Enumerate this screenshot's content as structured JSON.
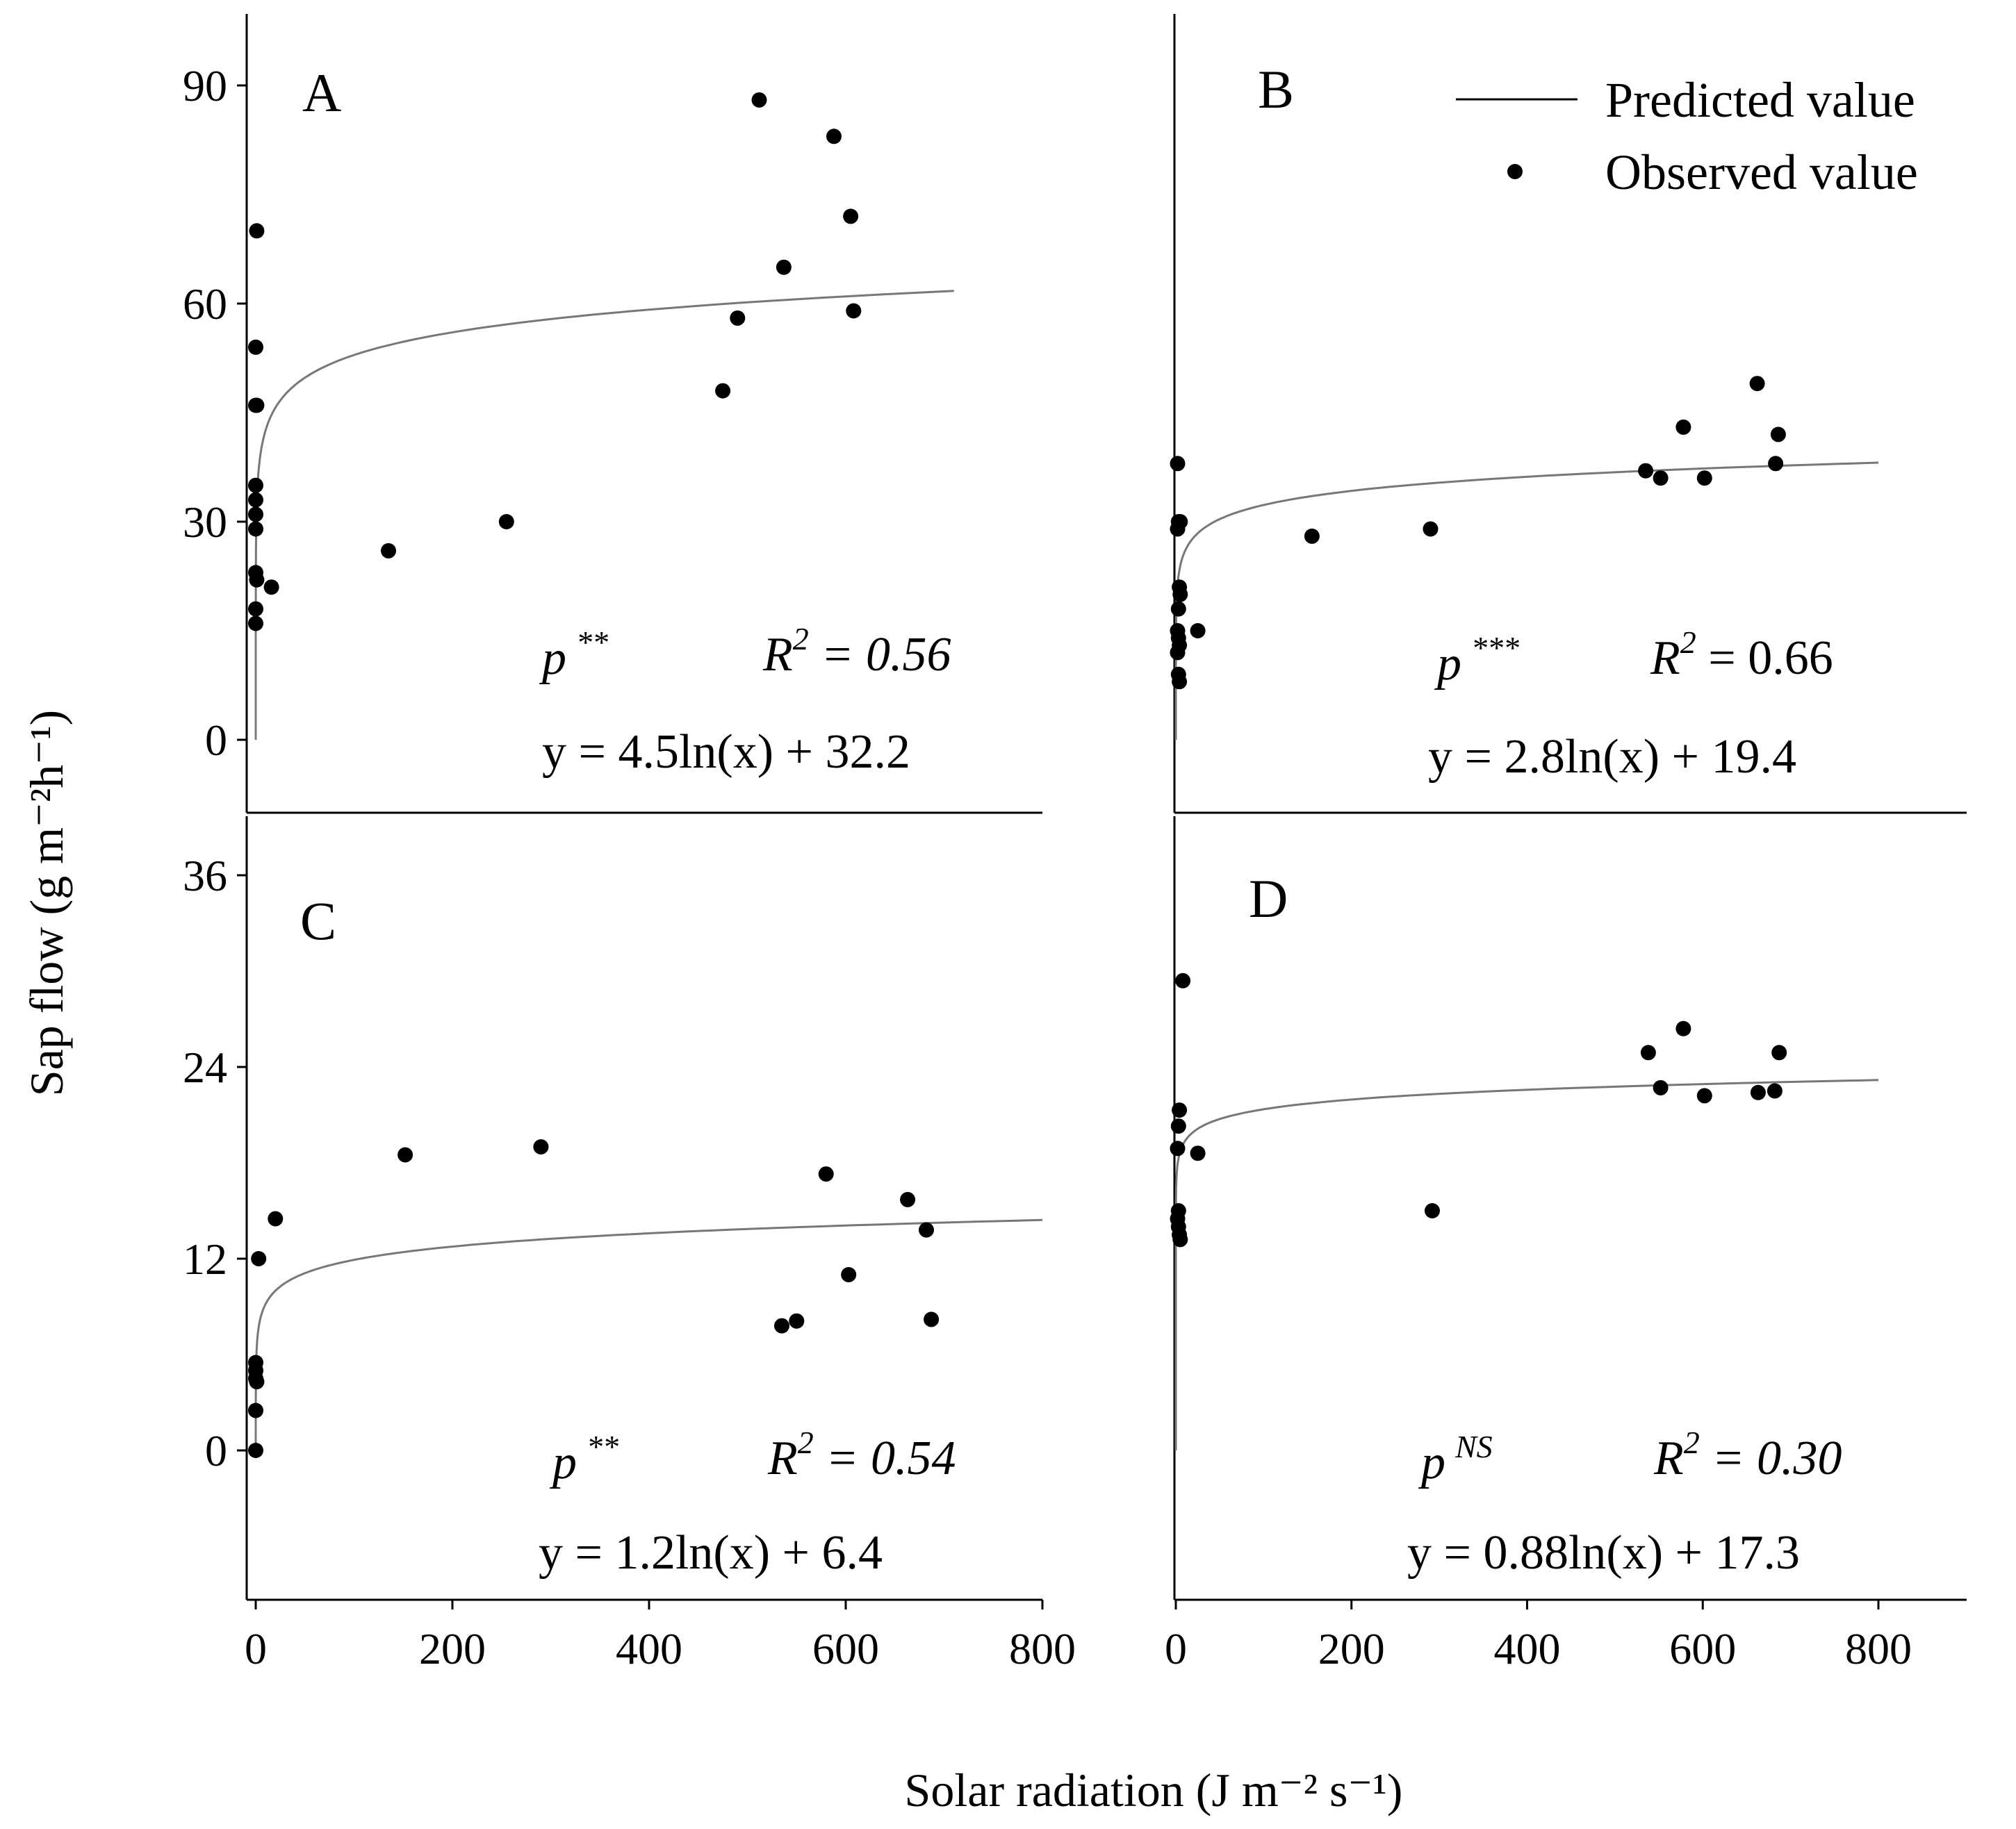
{
  "figure": {
    "ylabel": "Sap flow (g m⁻²h⁻¹)",
    "xlabel": "Solar radiation (J m⁻² s⁻¹)",
    "legend": {
      "predicted": "Predicted value",
      "observed": "Observed value"
    }
  },
  "chart_data": [
    {
      "type": "scatter",
      "panel": "A",
      "xlim": [
        -10,
        800
      ],
      "ylim": [
        -10,
        100
      ],
      "xticks": [
        0,
        200,
        400,
        600,
        800
      ],
      "xtick_labels": [
        "0",
        "200",
        "400",
        "600",
        "800"
      ],
      "yticks": [
        0,
        30,
        60,
        90
      ],
      "ytick_labels": [
        "0",
        "30",
        "60",
        "90"
      ],
      "fit": {
        "a": 4.5,
        "b": 32.2,
        "x_start": 0.001,
        "x_end": 710
      },
      "p_label": "p",
      "p_sup": "**",
      "r2_label": "R",
      "r2_text": " = 0.56",
      "equation": "y = 4.5ln(x) + 32.2",
      "points": [
        [
          1,
          70
        ],
        [
          0,
          54
        ],
        [
          0,
          46
        ],
        [
          1,
          46
        ],
        [
          0,
          35
        ],
        [
          0,
          33
        ],
        [
          0,
          31
        ],
        [
          0,
          29
        ],
        [
          0,
          23
        ],
        [
          1,
          22
        ],
        [
          0,
          18
        ],
        [
          0,
          16
        ],
        [
          16,
          21
        ],
        [
          135,
          26
        ],
        [
          255,
          30
        ],
        [
          475,
          48
        ],
        [
          490,
          58
        ],
        [
          512,
          88
        ],
        [
          537,
          65
        ],
        [
          588,
          83
        ],
        [
          605,
          72
        ],
        [
          608,
          59
        ]
      ]
    },
    {
      "type": "scatter",
      "panel": "B",
      "xlim": [
        -10,
        900
      ],
      "ylim": [
        -10,
        100
      ],
      "xticks": [
        0,
        200,
        400,
        600,
        800
      ],
      "xtick_labels": [
        "0",
        "200",
        "400",
        "600",
        "800"
      ],
      "yticks": [],
      "ytick_labels": [],
      "fit": {
        "a": 2.8,
        "b": 19.4,
        "x_start": 0.002,
        "x_end": 800
      },
      "p_label": "p",
      "p_sup": "***",
      "r2_label": "R",
      "r2_text": " = 0.66",
      "equation": "y = 2.8ln(x) + 19.4",
      "points": [
        [
          2,
          38
        ],
        [
          3,
          30
        ],
        [
          5,
          30
        ],
        [
          2,
          29
        ],
        [
          4,
          21
        ],
        [
          5,
          20
        ],
        [
          3,
          18
        ],
        [
          2,
          15
        ],
        [
          3,
          14
        ],
        [
          4,
          13
        ],
        [
          2,
          12
        ],
        [
          3,
          9
        ],
        [
          4,
          8
        ],
        [
          25,
          15
        ],
        [
          155,
          28
        ],
        [
          290,
          29
        ],
        [
          535,
          37
        ],
        [
          552,
          36
        ],
        [
          602,
          36
        ],
        [
          578,
          43
        ],
        [
          662,
          49
        ],
        [
          683,
          38
        ],
        [
          686,
          42
        ]
      ]
    },
    {
      "type": "scatter",
      "panel": "C",
      "xlim": [
        -10,
        800
      ],
      "ylim": [
        -10,
        40
      ],
      "xticks": [
        0,
        200,
        400,
        600,
        800
      ],
      "xtick_labels": [
        "0",
        "200",
        "400",
        "600",
        "800"
      ],
      "yticks": [
        0,
        12,
        24,
        36
      ],
      "ytick_labels": [
        "0",
        "12",
        "24",
        "36"
      ],
      "fit": {
        "a": 1.2,
        "b": 6.4,
        "x_start": 0.005,
        "x_end": 800
      },
      "p_label": "p",
      "p_sup": "**",
      "r2_label": "R",
      "r2_text": " = 0.54",
      "equation": "y = 1.2ln(x) + 6.4",
      "points": [
        [
          0,
          5.5
        ],
        [
          0,
          5
        ],
        [
          0,
          4.5
        ],
        [
          1,
          4.3
        ],
        [
          0,
          2.5
        ],
        [
          0,
          0
        ],
        [
          3,
          12
        ],
        [
          20,
          14.5
        ],
        [
          152,
          18.5
        ],
        [
          290,
          19
        ],
        [
          535,
          7.8
        ],
        [
          550,
          8.1
        ],
        [
          580,
          17.3
        ],
        [
          603,
          11
        ],
        [
          663,
          15.7
        ],
        [
          682,
          13.8
        ],
        [
          687,
          8.2
        ]
      ]
    },
    {
      "type": "scatter",
      "panel": "D",
      "xlim": [
        -10,
        900
      ],
      "ylim": [
        -10,
        40
      ],
      "xticks": [
        0,
        200,
        400,
        600,
        800
      ],
      "xtick_labels": [
        "0",
        "200",
        "400",
        "600",
        "800"
      ],
      "yticks": [],
      "ytick_labels": [],
      "fit": {
        "a": 0.88,
        "b": 17.3,
        "x_start": 1.5e-06,
        "x_end": 800
      },
      "p_label": "p",
      "p_sup": "NS",
      "r2_label": "R",
      "r2_text": " = 0.30",
      "equation": "y = 0.88ln(x) + 17.3",
      "points": [
        [
          8,
          29.4
        ],
        [
          4,
          21.3
        ],
        [
          3,
          20.3
        ],
        [
          2,
          18.9
        ],
        [
          3,
          15
        ],
        [
          2,
          14.5
        ],
        [
          3,
          14
        ],
        [
          4,
          13.5
        ],
        [
          5,
          13.2
        ],
        [
          25,
          18.6
        ],
        [
          292,
          15
        ],
        [
          538,
          24.9
        ],
        [
          552,
          22.7
        ],
        [
          578,
          26.4
        ],
        [
          602,
          22.2
        ],
        [
          663,
          22.4
        ],
        [
          682,
          22.5
        ],
        [
          687,
          24.9
        ]
      ]
    }
  ]
}
